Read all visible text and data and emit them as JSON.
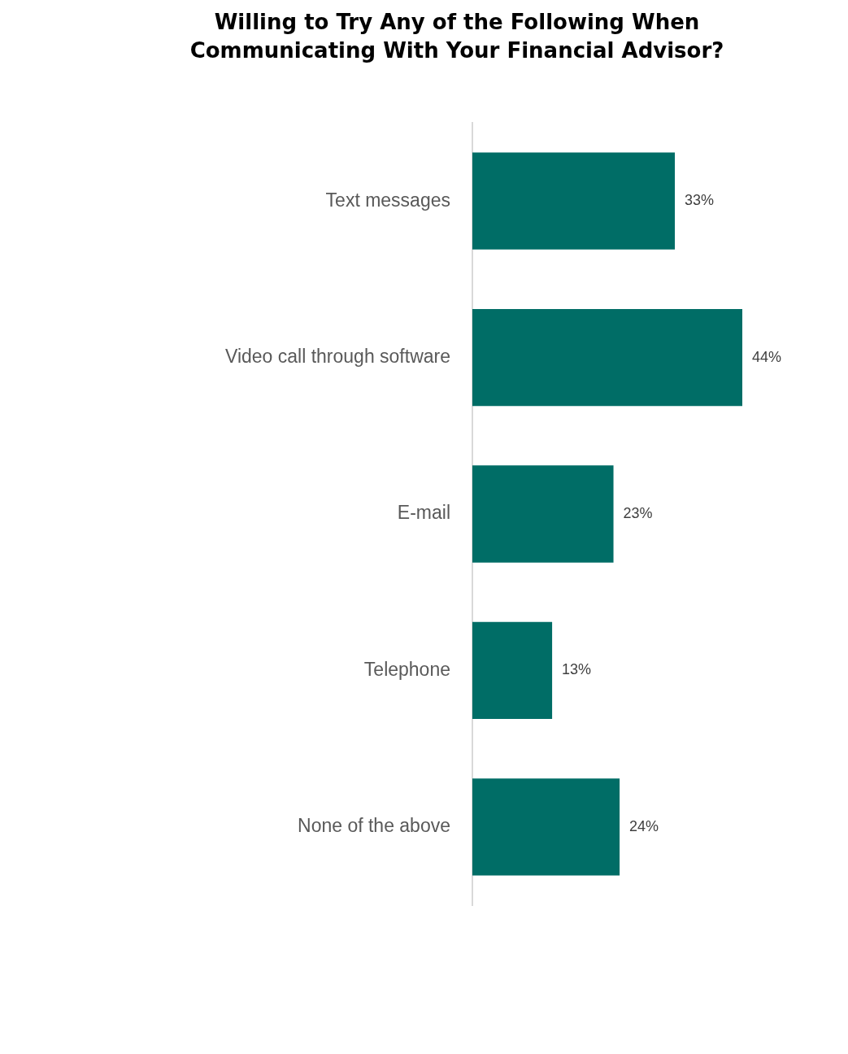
{
  "chart_data": {
    "type": "bar",
    "orientation": "horizontal",
    "title": "Willing to Try Any of the Following When Communicating With Your Financial Advisor?",
    "categories": [
      "Text messages",
      "Video call through software",
      "E-mail",
      "Telephone",
      "None of the above"
    ],
    "values": [
      33,
      44,
      23,
      13,
      24
    ],
    "color": "#006d66",
    "value_labels": [
      "33%",
      "44%",
      "23%",
      "13%",
      "24%"
    ],
    "tick_labels": "y"
  }
}
